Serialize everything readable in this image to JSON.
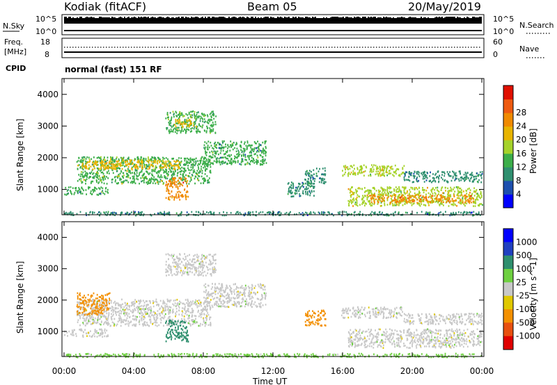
{
  "header": {
    "site": "Kodiak (fitACF)",
    "beam": "Beam 05",
    "date": "20/May/2019"
  },
  "nsky": {
    "left_label": "N.Sky",
    "right_label": "N.Search",
    "tick_top": "10^5",
    "tick_bottom": "10^0",
    "right_tick_top": "10^5",
    "right_tick_bottom": "10^0"
  },
  "freq": {
    "left_label_1": "Freq.",
    "left_label_2": "[MHz]",
    "right_label": "Nave",
    "tick_top": "18",
    "tick_bottom": "8",
    "right_tick_top": "60",
    "right_tick_bottom": "0"
  },
  "cpid": {
    "label": "CPID",
    "text": "normal (fast) 151 RF"
  },
  "colors": {
    "power_scale": [
      "#0000ff",
      "#1d4fae",
      "#2f8f6f",
      "#3cae4a",
      "#a5d22a",
      "#e8b400",
      "#f08a00",
      "#ee5a10",
      "#e01000"
    ],
    "velocity_scale": [
      "#0000ff",
      "#2040c0",
      "#2e8f6e",
      "#6ed040",
      "#c8c8c8",
      "#e0c800",
      "#f39000",
      "#e85010",
      "#e00000"
    ]
  },
  "chart_data": [
    {
      "type": "heatmap",
      "name": "Power",
      "xlabel": "",
      "ylabel": "Slant Range [km]",
      "x_ticks": [
        "00:00",
        "04:00",
        "08:00",
        "12:00",
        "16:00",
        "20:00",
        "00:00"
      ],
      "xlim_hours": [
        0,
        24
      ],
      "y_ticks": [
        1000,
        2000,
        3000,
        4000
      ],
      "ylim": [
        200,
        4500
      ],
      "colorbar_label": "Power [dB]",
      "colorbar_ticks": [
        "4",
        "8",
        "12",
        "16",
        "20",
        "24",
        "28"
      ],
      "clim": [
        0,
        30
      ],
      "regions": [
        {
          "t0": 0.0,
          "t1": 24.0,
          "r0": 200,
          "r1": 320,
          "value": 8
        },
        {
          "t0": 0.7,
          "t1": 8.4,
          "r0": 1200,
          "r1": 2050,
          "value": 13
        },
        {
          "t0": 1.0,
          "t1": 6.6,
          "r0": 1650,
          "r1": 1950,
          "value": 18
        },
        {
          "t0": 0.0,
          "t1": 2.5,
          "r0": 850,
          "r1": 1100,
          "value": 10
        },
        {
          "t0": 5.8,
          "t1": 7.1,
          "r0": 700,
          "r1": 1400,
          "value": 22
        },
        {
          "t0": 5.8,
          "t1": 8.7,
          "r0": 2800,
          "r1": 3500,
          "value": 12
        },
        {
          "t0": 6.3,
          "t1": 7.6,
          "r0": 3000,
          "r1": 3250,
          "value": 18
        },
        {
          "t0": 8.0,
          "t1": 11.6,
          "r0": 1800,
          "r1": 2550,
          "value": 10
        },
        {
          "t0": 12.8,
          "t1": 14.4,
          "r0": 800,
          "r1": 1250,
          "value": 8
        },
        {
          "t0": 13.8,
          "t1": 15.0,
          "r0": 1200,
          "r1": 1700,
          "value": 8
        },
        {
          "t0": 15.9,
          "t1": 19.5,
          "r0": 1450,
          "r1": 1800,
          "value": 16
        },
        {
          "t0": 16.3,
          "t1": 24.0,
          "r0": 500,
          "r1": 1100,
          "value": 16
        },
        {
          "t0": 17.5,
          "t1": 23.5,
          "r0": 600,
          "r1": 850,
          "value": 22
        },
        {
          "t0": 19.5,
          "t1": 24.0,
          "r0": 1250,
          "r1": 1600,
          "value": 8
        }
      ]
    },
    {
      "type": "heatmap",
      "name": "Velocity",
      "xlabel": "Time UT",
      "ylabel": "Slant Range [km]",
      "x_ticks": [
        "00:00",
        "04:00",
        "08:00",
        "12:00",
        "16:00",
        "20:00",
        "00:00"
      ],
      "xlim_hours": [
        0,
        24
      ],
      "y_ticks": [
        1000,
        2000,
        3000,
        4000
      ],
      "ylim": [
        200,
        4500
      ],
      "colorbar_label": "Velocity [m s^-1]",
      "colorbar_ticks": [
        "1000",
        "500",
        "100",
        "25",
        "-25",
        "-100",
        "-500",
        "-1000"
      ],
      "regions": [
        {
          "t0": 0.0,
          "t1": 24.0,
          "r0": 200,
          "r1": 320,
          "value": 40
        },
        {
          "t0": 0.7,
          "t1": 8.4,
          "r0": 1200,
          "r1": 2050,
          "value": 0
        },
        {
          "t0": 0.7,
          "t1": 2.6,
          "r0": 1550,
          "r1": 2250,
          "value": -350
        },
        {
          "t0": 0.0,
          "t1": 2.5,
          "r0": 850,
          "r1": 1100,
          "value": 0
        },
        {
          "t0": 5.8,
          "t1": 7.1,
          "r0": 700,
          "r1": 1400,
          "value": 150
        },
        {
          "t0": 5.8,
          "t1": 8.7,
          "r0": 2800,
          "r1": 3500,
          "value": 0
        },
        {
          "t0": 8.0,
          "t1": 11.6,
          "r0": 1800,
          "r1": 2550,
          "value": 0
        },
        {
          "t0": 13.8,
          "t1": 15.0,
          "r0": 1200,
          "r1": 1700,
          "value": -150
        },
        {
          "t0": 15.9,
          "t1": 19.5,
          "r0": 1450,
          "r1": 1800,
          "value": 0
        },
        {
          "t0": 16.3,
          "t1": 24.0,
          "r0": 500,
          "r1": 1100,
          "value": 0
        },
        {
          "t0": 19.5,
          "t1": 24.0,
          "r0": 1250,
          "r1": 1600,
          "value": 0
        }
      ]
    }
  ]
}
